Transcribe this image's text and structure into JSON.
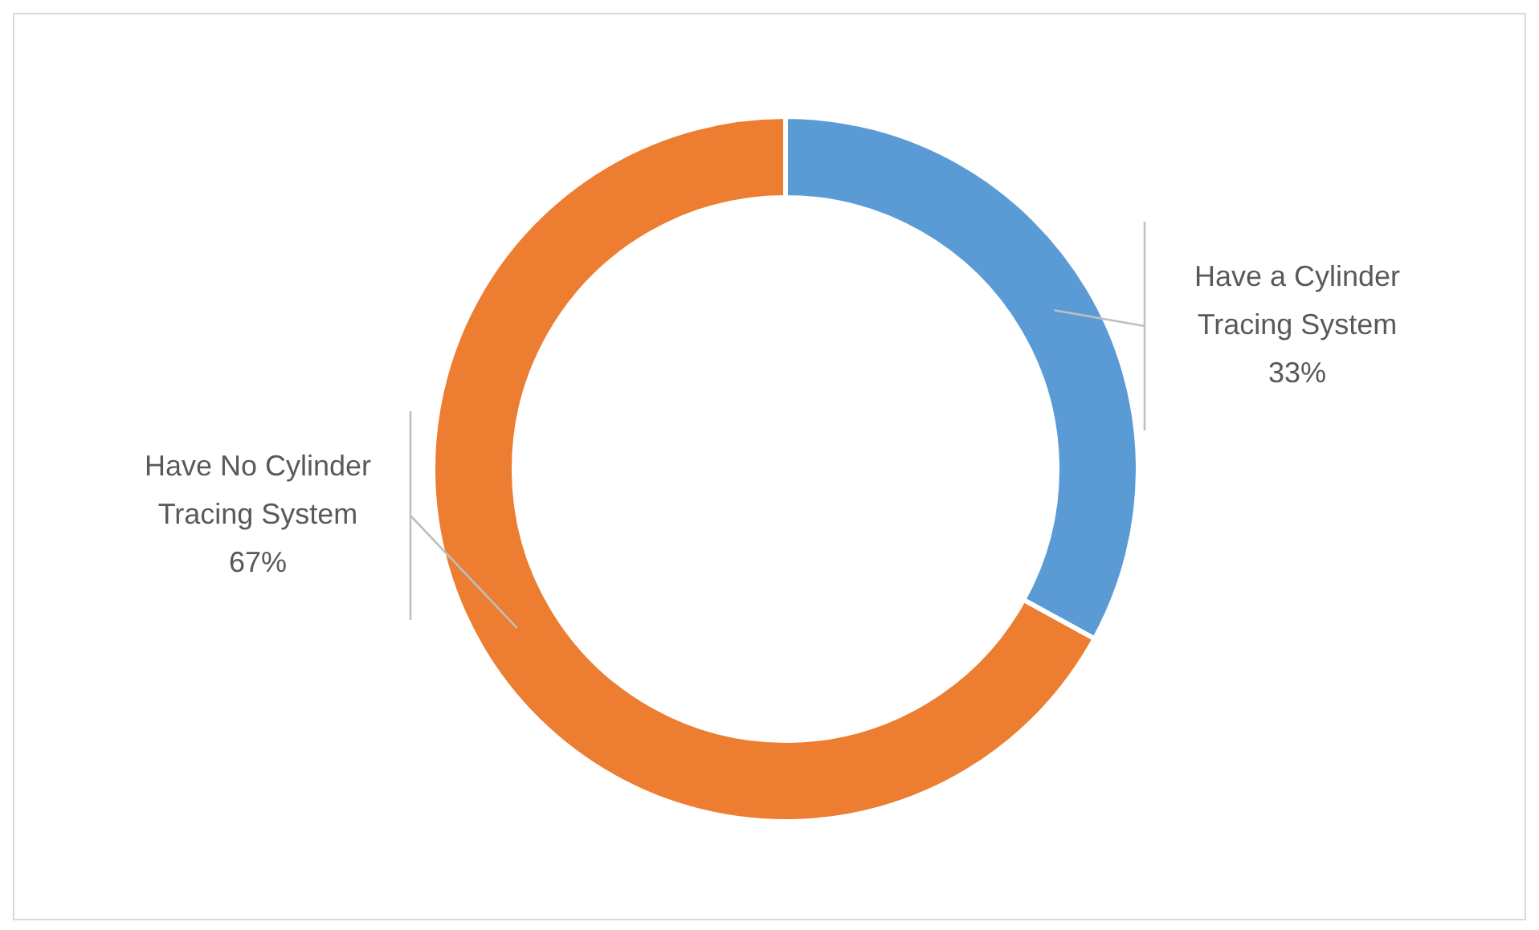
{
  "chart_data": {
    "type": "donut",
    "categories": [
      "Have a Cylinder Tracing System",
      "Have No Cylinder Tracing System"
    ],
    "values": [
      33,
      67
    ],
    "colors": [
      "#5b9bd5",
      "#ed7d31"
    ],
    "value_labels": [
      "33%",
      "67%"
    ],
    "legend": false
  }
}
